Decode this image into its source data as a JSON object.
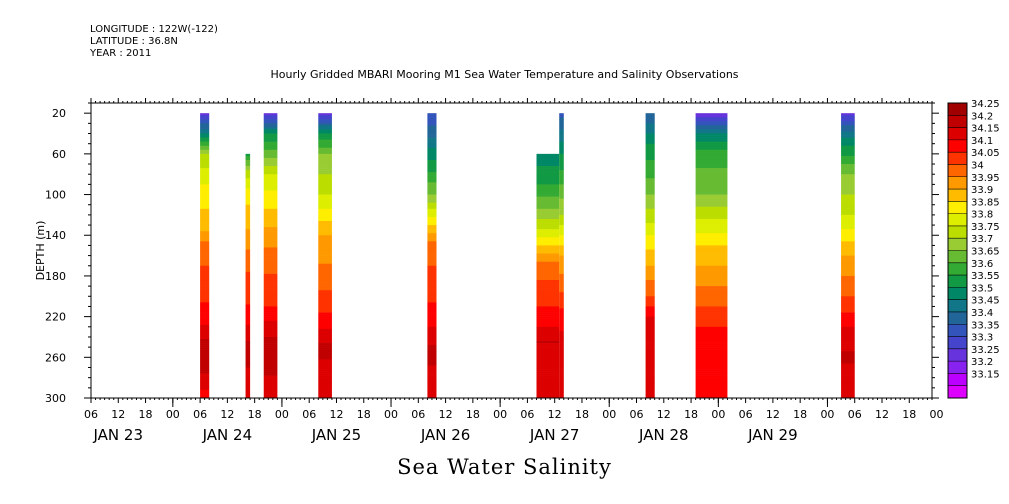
{
  "header": {
    "longitude": "LONGITUDE : 122W(-122)",
    "latitude": "LATITUDE : 36.8N",
    "year": "YEAR : 2011"
  },
  "chart_data": {
    "type": "heatmap",
    "title": "Hourly Gridded MBARI Mooring M1 Sea Water Temperature and Salinity Observations",
    "subtitle": "Sea Water Salinity",
    "ylabel": "DEPTH (m)",
    "xlim_hours": [
      -18,
      167
    ],
    "ylim": [
      300,
      10
    ],
    "y_ticks": [
      20,
      60,
      100,
      140,
      180,
      220,
      260,
      300
    ],
    "x_hour_labels": [
      "06",
      "12",
      "18",
      "00",
      "06",
      "12",
      "18",
      "00",
      "06",
      "12",
      "18",
      "00",
      "06",
      "12",
      "18",
      "00",
      "06",
      "12",
      "18",
      "00",
      "06",
      "12",
      "18",
      "00",
      "06",
      "12",
      "18",
      "00",
      "06",
      "12",
      "18",
      "00"
    ],
    "day_labels": [
      "JAN 23",
      "JAN 24",
      "JAN 25",
      "JAN 26",
      "JAN 27",
      "JAN 28",
      "JAN 29"
    ],
    "colorbar": {
      "labels": [
        "34.25",
        "34.2",
        "34.15",
        "34.1",
        "34.05",
        "34",
        "33.95",
        "33.9",
        "33.85",
        "33.8",
        "33.75",
        "33.7",
        "33.65",
        "33.6",
        "33.55",
        "33.5",
        "33.45",
        "33.4",
        "33.35",
        "33.3",
        "33.25",
        "33.2",
        "33.15"
      ],
      "colors": [
        "#a00000",
        "#c00000",
        "#dd0000",
        "#ff0000",
        "#ff3300",
        "#ff6600",
        "#ff9900",
        "#ffbb00",
        "#ffee00",
        "#ddee00",
        "#bbdd00",
        "#99cc33",
        "#66bb33",
        "#33aa33",
        "#119944",
        "#008866",
        "#117788",
        "#226699",
        "#3355bb",
        "#4444cc",
        "#6633dd",
        "#8822ee",
        "#bb00ff",
        "#dd00ff"
      ]
    },
    "profile_default": [
      [
        20,
        33.3
      ],
      [
        40,
        33.6
      ],
      [
        60,
        33.75
      ],
      [
        100,
        33.85
      ],
      [
        140,
        33.95
      ],
      [
        180,
        34.04
      ],
      [
        220,
        34.12
      ],
      [
        250,
        34.22
      ],
      [
        270,
        34.2
      ],
      [
        300,
        34.15
      ]
    ],
    "columns": [
      {
        "start_hour": 6,
        "end_hour": 8,
        "top_depth": 20,
        "profile": [
          [
            20,
            33.28
          ],
          [
            40,
            33.5
          ],
          [
            60,
            33.75
          ],
          [
            80,
            33.82
          ],
          [
            100,
            33.88
          ],
          [
            130,
            33.92
          ],
          [
            150,
            34.02
          ],
          [
            220,
            34.12
          ],
          [
            245,
            34.21
          ],
          [
            270,
            34.22
          ],
          [
            300,
            34.12
          ]
        ]
      },
      {
        "start_hour": 16,
        "end_hour": 17,
        "top_depth": 60,
        "profile": [
          [
            60,
            33.58
          ],
          [
            80,
            33.78
          ],
          [
            100,
            33.88
          ],
          [
            140,
            33.96
          ],
          [
            170,
            34.04
          ],
          [
            220,
            34.12
          ],
          [
            250,
            34.22
          ],
          [
            300,
            34.17
          ]
        ]
      },
      {
        "start_hour": 20,
        "end_hour": 23,
        "top_depth": 20,
        "profile": [
          [
            20,
            33.26
          ],
          [
            40,
            33.55
          ],
          [
            80,
            33.8
          ],
          [
            120,
            33.92
          ],
          [
            160,
            34.02
          ],
          [
            210,
            34.1
          ],
          [
            240,
            34.2
          ],
          [
            270,
            34.22
          ],
          [
            300,
            34.15
          ]
        ]
      },
      {
        "start_hour": 32,
        "end_hour": 35,
        "top_depth": 20,
        "profile": [
          [
            20,
            33.27
          ],
          [
            40,
            33.55
          ],
          [
            60,
            33.7
          ],
          [
            100,
            33.8
          ],
          [
            140,
            33.95
          ],
          [
            180,
            34.02
          ],
          [
            220,
            34.11
          ],
          [
            250,
            34.21
          ],
          [
            300,
            34.17
          ]
        ]
      },
      {
        "start_hour": 56,
        "end_hour": 58,
        "top_depth": 20,
        "profile": [
          [
            20,
            33.35
          ],
          [
            50,
            33.48
          ],
          [
            100,
            33.7
          ],
          [
            130,
            33.9
          ],
          [
            150,
            34.02
          ],
          [
            220,
            34.12
          ],
          [
            255,
            34.22
          ],
          [
            300,
            34.15
          ]
        ]
      },
      {
        "start_hour": 80,
        "end_hour": 85,
        "top_depth": 60,
        "profile": [
          [
            60,
            33.52
          ],
          [
            90,
            33.6
          ],
          [
            120,
            33.72
          ],
          [
            150,
            33.9
          ],
          [
            170,
            34.02
          ],
          [
            220,
            34.12
          ],
          [
            245,
            34.2
          ],
          [
            300,
            34.19
          ]
        ]
      },
      {
        "start_hour": 85,
        "end_hour": 86,
        "top_depth": 20,
        "profile": [
          [
            20,
            33.38
          ],
          [
            60,
            33.55
          ],
          [
            120,
            33.75
          ],
          [
            160,
            33.95
          ],
          [
            220,
            34.12
          ],
          [
            260,
            34.2
          ],
          [
            300,
            34.15
          ]
        ]
      },
      {
        "start_hour": 104,
        "end_hour": 106,
        "top_depth": 20,
        "profile": [
          [
            20,
            33.4
          ],
          [
            50,
            33.55
          ],
          [
            100,
            33.7
          ],
          [
            160,
            33.92
          ],
          [
            200,
            34.05
          ],
          [
            230,
            34.2
          ],
          [
            300,
            34.15
          ]
        ]
      },
      {
        "start_hour": 115,
        "end_hour": 122,
        "top_depth": 20,
        "profile": [
          [
            20,
            33.25
          ],
          [
            40,
            33.5
          ],
          [
            60,
            33.62
          ],
          [
            100,
            33.7
          ],
          [
            150,
            33.9
          ],
          [
            190,
            34.0
          ],
          [
            230,
            34.1
          ],
          [
            260,
            34.14
          ],
          [
            300,
            34.12
          ]
        ]
      },
      {
        "start_hour": 147,
        "end_hour": 150,
        "top_depth": 20,
        "profile": [
          [
            20,
            33.27
          ],
          [
            40,
            33.48
          ],
          [
            80,
            33.7
          ],
          [
            120,
            33.8
          ],
          [
            160,
            33.95
          ],
          [
            200,
            34.05
          ],
          [
            230,
            34.15
          ],
          [
            260,
            34.21
          ],
          [
            300,
            34.15
          ]
        ]
      }
    ]
  }
}
